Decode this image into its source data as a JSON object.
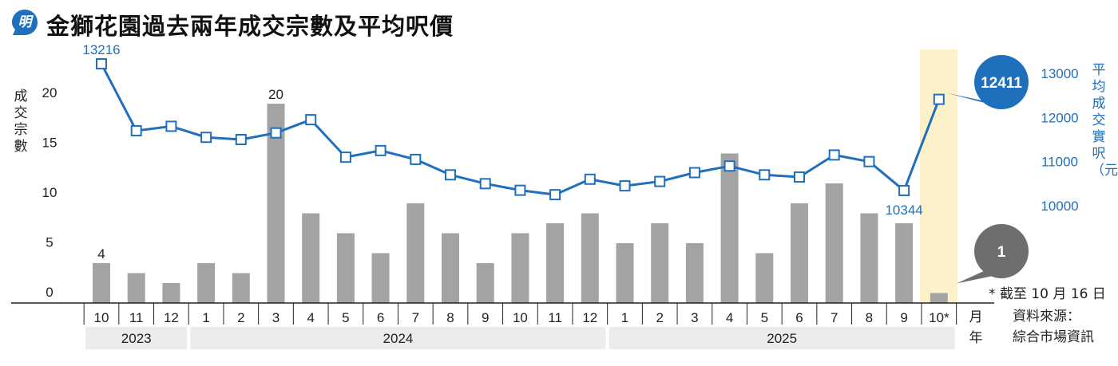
{
  "header": {
    "logo_text": "明",
    "title": "金獅花園過去兩年成交宗數及平均呎價"
  },
  "footer": {
    "source_label": "資料來源：",
    "source_name": "綜合市場資訊",
    "note": "* 截至 10 月 16 日"
  },
  "chart_data": {
    "type": "bar+line",
    "categories": [
      "10",
      "11",
      "12",
      "1",
      "2",
      "3",
      "4",
      "5",
      "6",
      "7",
      "8",
      "9",
      "10",
      "11",
      "12",
      "1",
      "2",
      "3",
      "4",
      "5",
      "6",
      "7",
      "8",
      "9",
      "10*"
    ],
    "year_groups": [
      {
        "label": "2023",
        "start": 0,
        "end": 2
      },
      {
        "label": "2024",
        "start": 3,
        "end": 14
      },
      {
        "label": "2025",
        "start": 15,
        "end": 24
      }
    ],
    "x_unit_month": "月",
    "x_unit_year": "年",
    "bar_series": {
      "axis_title": "成交宗數",
      "values": [
        4,
        3,
        2,
        4,
        3,
        20,
        9,
        7,
        5,
        10,
        7,
        4,
        7,
        8,
        9,
        6,
        8,
        6,
        15,
        5,
        10,
        12,
        9,
        8,
        1
      ],
      "color": "#a3a3a3",
      "ylim": [
        0,
        20
      ],
      "ticks": [
        0,
        5,
        10,
        15,
        20
      ]
    },
    "line_series": {
      "axis_title": "平均成交實呎（元）",
      "values": [
        13216,
        11700,
        11800,
        11550,
        11500,
        11650,
        11950,
        11100,
        11250,
        11050,
        10700,
        10500,
        10350,
        10250,
        10600,
        10450,
        10550,
        10750,
        10900,
        10700,
        10650,
        11150,
        11000,
        10344,
        12411
      ],
      "color": "#1f6fbd",
      "ylim": [
        10000,
        13000
      ],
      "ticks": [
        10000,
        11000,
        12000,
        13000
      ]
    },
    "data_labels": [
      {
        "series": "bar",
        "index": 0,
        "text": "4"
      },
      {
        "series": "bar",
        "index": 5,
        "text": "20"
      },
      {
        "series": "line",
        "index": 0,
        "text": "13216"
      },
      {
        "series": "line",
        "index": 23,
        "text": "10344"
      }
    ],
    "callouts": [
      {
        "series": "line",
        "index": 24,
        "text": "12411",
        "color": "#1f6fbd"
      },
      {
        "series": "bar",
        "index": 24,
        "text": "1",
        "color": "#6e6e6e"
      }
    ],
    "highlight_index": 24,
    "highlight_color": "#fcf1c9"
  }
}
